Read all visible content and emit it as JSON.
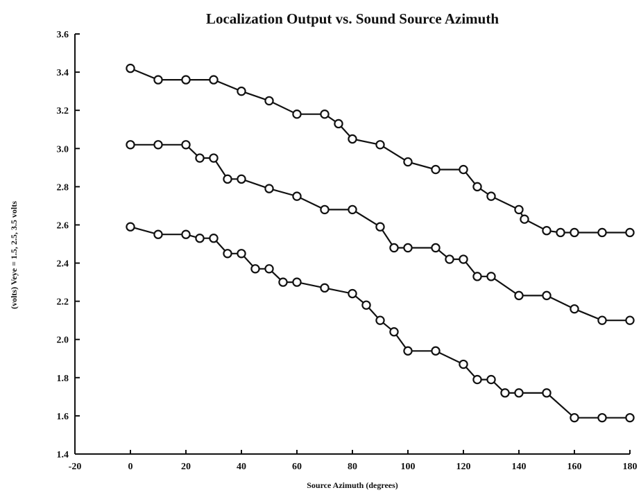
{
  "chart_data": {
    "type": "line",
    "title": "Localization Output vs. Sound Source Azimuth",
    "xlabel": "Source Azimuth (degrees)",
    "ylabel": "(volts) Veye = 1.5, 2.5, 3.5 volts",
    "xlim": [
      -20,
      180
    ],
    "ylim": [
      1.4,
      3.6
    ],
    "xticks": [
      -20,
      0,
      20,
      40,
      60,
      80,
      100,
      120,
      140,
      160,
      180
    ],
    "yticks": [
      1.4,
      1.6,
      1.8,
      2.0,
      2.2,
      2.4,
      2.6,
      2.8,
      3.0,
      3.2,
      3.4,
      3.6
    ],
    "xtick_labels": [
      "-20",
      "0",
      "20",
      "40",
      "60",
      "80",
      "100",
      "120",
      "140",
      "160",
      "180"
    ],
    "ytick_labels": [
      "1.4",
      "1.6",
      "1.8",
      "2.0",
      "2.2",
      "2.4",
      "2.6",
      "2.8",
      "3.0",
      "3.2",
      "3.4",
      "3.6"
    ],
    "grid": false,
    "marker": "open-circle",
    "color": "#111111",
    "series": [
      {
        "x": [
          0,
          10,
          20,
          30,
          40,
          50,
          60,
          70,
          75,
          80,
          90,
          100,
          110,
          120,
          125,
          130,
          140,
          142,
          150,
          155,
          160,
          170,
          180
        ],
        "y": [
          3.42,
          3.36,
          3.36,
          3.36,
          3.3,
          3.25,
          3.18,
          3.18,
          3.13,
          3.05,
          3.02,
          2.93,
          2.89,
          2.89,
          2.8,
          2.75,
          2.68,
          2.63,
          2.57,
          2.56,
          2.56,
          2.56,
          2.56
        ]
      },
      {
        "x": [
          0,
          10,
          20,
          25,
          30,
          35,
          40,
          50,
          60,
          70,
          80,
          90,
          95,
          100,
          110,
          115,
          120,
          125,
          130,
          140,
          150,
          160,
          170,
          180
        ],
        "y": [
          3.02,
          3.02,
          3.02,
          2.95,
          2.95,
          2.84,
          2.84,
          2.79,
          2.75,
          2.68,
          2.68,
          2.59,
          2.48,
          2.48,
          2.48,
          2.42,
          2.42,
          2.33,
          2.33,
          2.23,
          2.23,
          2.16,
          2.1,
          2.1
        ]
      },
      {
        "x": [
          0,
          10,
          20,
          25,
          30,
          35,
          40,
          45,
          50,
          55,
          60,
          70,
          80,
          85,
          90,
          95,
          100,
          110,
          120,
          125,
          130,
          135,
          140,
          150,
          160,
          170,
          180
        ],
        "y": [
          2.59,
          2.55,
          2.55,
          2.53,
          2.53,
          2.45,
          2.45,
          2.37,
          2.37,
          2.3,
          2.3,
          2.27,
          2.24,
          2.18,
          2.1,
          2.04,
          1.94,
          1.94,
          1.87,
          1.79,
          1.79,
          1.72,
          1.72,
          1.72,
          1.59,
          1.59,
          1.59
        ]
      }
    ]
  }
}
